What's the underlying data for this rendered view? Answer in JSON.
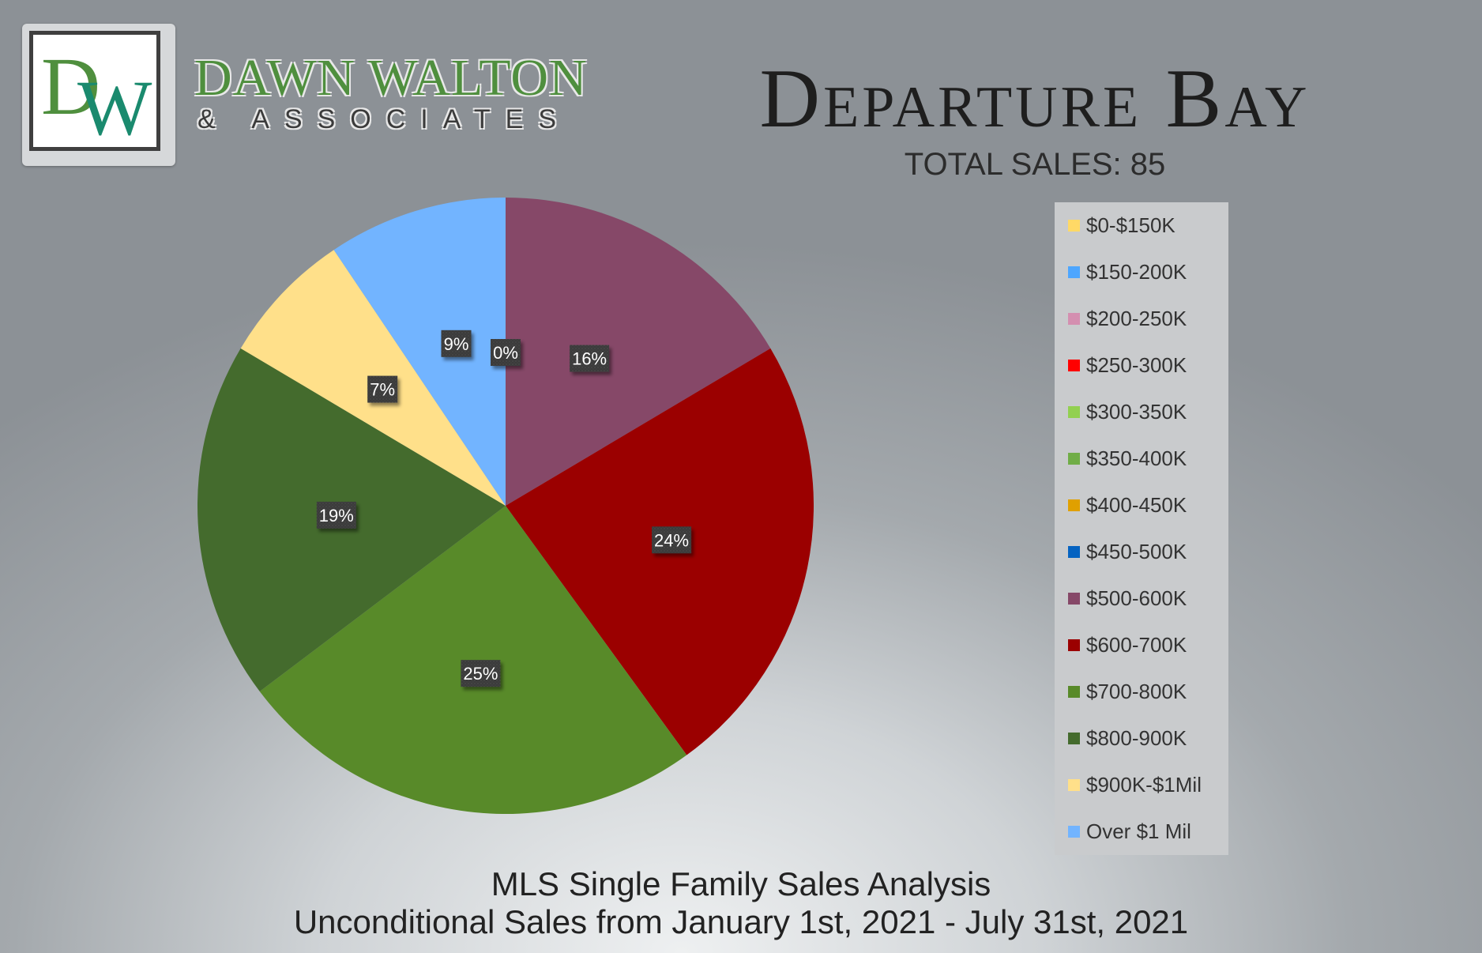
{
  "brand": {
    "monogram": "DW",
    "name": "DAWN WALTON",
    "tagline": "& ASSOCIATES"
  },
  "header": {
    "title": "Departure Bay",
    "total_sales": "TOTAL SALES: 85"
  },
  "footer": {
    "line1": "MLS Single Family Sales Analysis",
    "line2": "Unconditional Sales from January 1st, 2021 - July 31st, 2021"
  },
  "chart_data": {
    "type": "pie",
    "categories": [
      "$0-$150K",
      "$150-200K",
      "$200-250K",
      "$250-300K",
      "$300-350K",
      "$350-400K",
      "$400-450K",
      "$450-500K",
      "$500-600K",
      "$600-700K",
      "$700-800K",
      "$800-900K",
      "$900K-$1Mil",
      "Over $1 Mil"
    ],
    "values": [
      0,
      0,
      0,
      0,
      0,
      0,
      0,
      0,
      14,
      20,
      21,
      16,
      6,
      8
    ],
    "data_labels": [
      "0%",
      "",
      "",
      "",
      "",
      "",
      "",
      "",
      "16%",
      "24%",
      "25%",
      "19%",
      "7%",
      "9%"
    ],
    "colors": [
      "#ffd966",
      "#4da6ff",
      "#d48fb0",
      "#ff0000",
      "#92d050",
      "#70ad47",
      "#e0a000",
      "#0563c1",
      "#864868",
      "#9b0000",
      "#588a29",
      "#446b2d",
      "#ffe08a",
      "#72b4ff"
    ],
    "legend_position": "right"
  }
}
